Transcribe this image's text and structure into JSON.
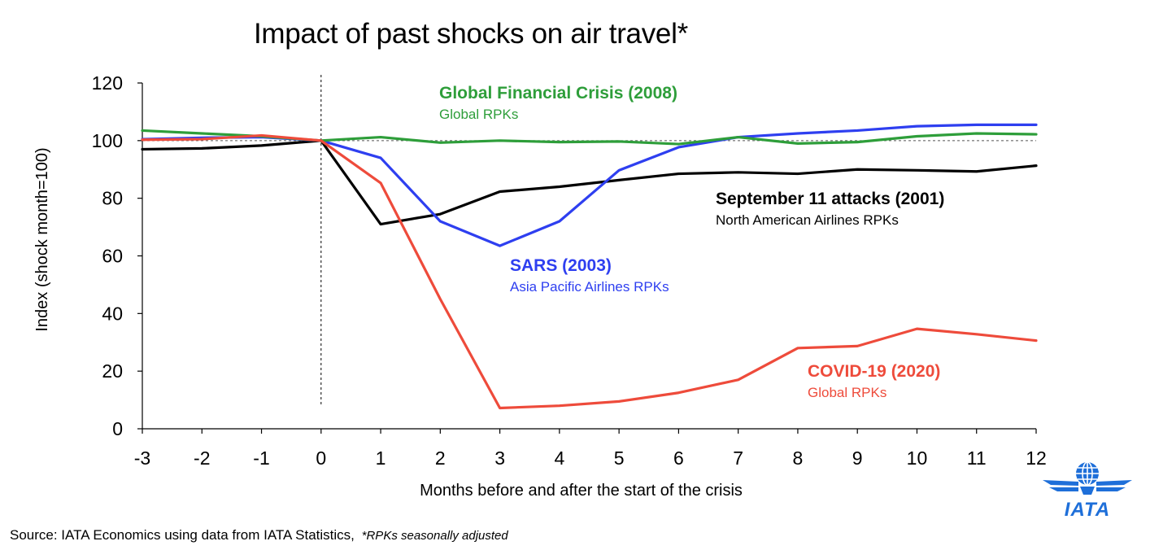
{
  "title": "Impact of past shocks on air travel*",
  "source": {
    "text": "Source: IATA Economics using data from IATA Statistics,",
    "note": "*RPKs seasonally adjusted"
  },
  "logo": {
    "text": "IATA",
    "icon": "globe-wings-logo",
    "color": "#1e6fd9"
  },
  "annotations": [
    {
      "id": "gfc",
      "title": "Global Financial Crisis (2008)",
      "subtitle": "Global RPKs",
      "color": "#2e9e3a"
    },
    {
      "id": "sept11",
      "title": "September 11 attacks (2001)",
      "subtitle": "North American Airlines RPKs",
      "color": "#000000"
    },
    {
      "id": "sars",
      "title": "SARS (2003)",
      "subtitle": "Asia Pacific Airlines RPKs",
      "color": "#2e3ff0"
    },
    {
      "id": "covid",
      "title": "COVID-19 (2020)",
      "subtitle": "Global RPKs",
      "color": "#ee4b3b"
    }
  ],
  "chart_data": {
    "type": "line",
    "title": "Impact of past shocks on air travel*",
    "xlabel": "Months before and after the start of the crisis",
    "ylabel": "Index (shock month=100)",
    "x": [
      -3,
      -2,
      -1,
      0,
      1,
      2,
      3,
      4,
      5,
      6,
      7,
      8,
      9,
      10,
      11,
      12
    ],
    "xlim": [
      -3,
      12
    ],
    "ylim": [
      0,
      120
    ],
    "yticks": [
      0,
      20,
      40,
      60,
      80,
      100,
      120
    ],
    "reference_line_y": 100,
    "shock_month_x": 0,
    "grid": false,
    "series": [
      {
        "id": "sept11",
        "color": "#000000",
        "values": [
          97,
          97.3,
          98.3,
          100,
          71,
          74.5,
          82.3,
          84,
          86.3,
          88.5,
          89,
          88.5,
          90,
          89.7,
          89.3,
          91.3
        ]
      },
      {
        "id": "sars",
        "color": "#2e3ff0",
        "values": [
          100.5,
          101,
          101.2,
          100,
          94,
          72,
          63.5,
          72,
          89.7,
          97.7,
          101.2,
          102.5,
          103.5,
          105,
          105.5,
          105.5
        ]
      },
      {
        "id": "gfc",
        "color": "#2e9e3a",
        "values": [
          103.5,
          102.5,
          101.5,
          100,
          101.2,
          99.3,
          100,
          99.5,
          99.7,
          98.8,
          101.2,
          99,
          99.5,
          101.5,
          102.5,
          102.2
        ]
      },
      {
        "id": "covid",
        "color": "#ee4b3b",
        "values": [
          100.3,
          100.5,
          101.8,
          100,
          85.3,
          45,
          7.2,
          8,
          9.5,
          12.5,
          17,
          28,
          28.7,
          34.7,
          32.8,
          30.6
        ]
      }
    ]
  }
}
